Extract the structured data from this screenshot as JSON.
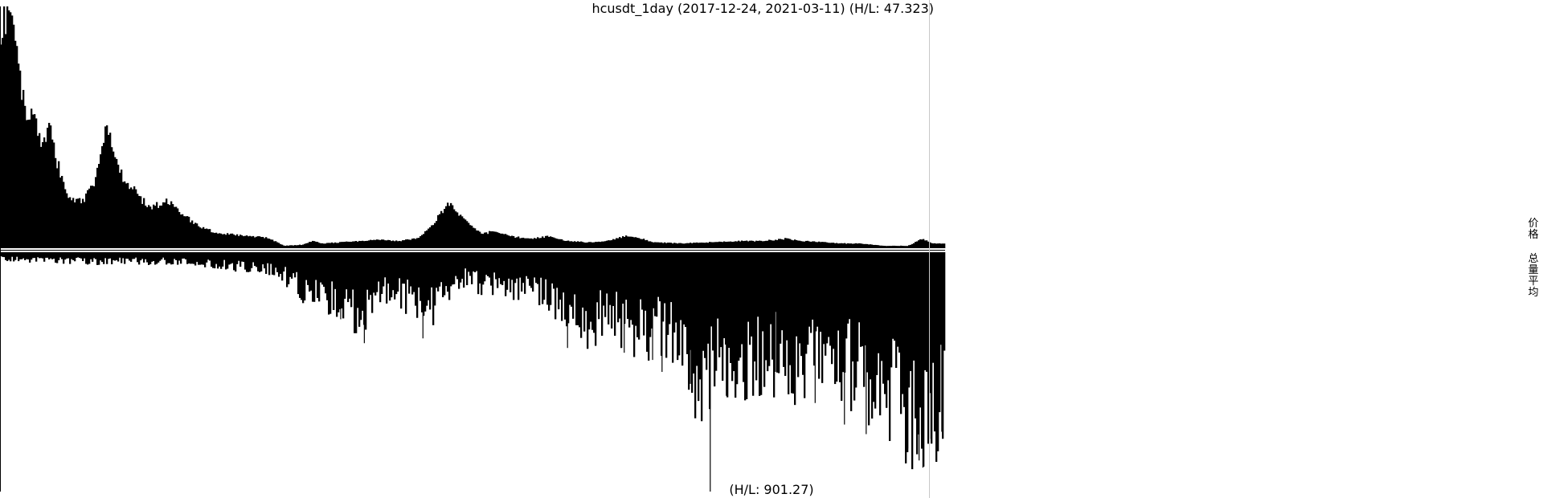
{
  "chart_data": {
    "type": "bar",
    "title": "hcusdt_1day (2017-12-24, 2021-03-11) (H/L: 47.323)",
    "x_range": [
      "2017-12-24",
      "2021-03-11"
    ],
    "panels": [
      {
        "name": "价格",
        "hl_ratio": 47.323,
        "shape": "filled area of daily price, normalized to panel height",
        "knots": [
          [
            0,
            0.86
          ],
          [
            0.003,
            0.97
          ],
          [
            0.008,
            0.99
          ],
          [
            0.012,
            0.93
          ],
          [
            0.018,
            0.78
          ],
          [
            0.024,
            0.62
          ],
          [
            0.03,
            0.55
          ],
          [
            0.035,
            0.63
          ],
          [
            0.04,
            0.48
          ],
          [
            0.046,
            0.44
          ],
          [
            0.052,
            0.5
          ],
          [
            0.057,
            0.4
          ],
          [
            0.063,
            0.32
          ],
          [
            0.07,
            0.22
          ],
          [
            0.078,
            0.2
          ],
          [
            0.088,
            0.2
          ],
          [
            0.098,
            0.27
          ],
          [
            0.105,
            0.38
          ],
          [
            0.112,
            0.52
          ],
          [
            0.118,
            0.42
          ],
          [
            0.125,
            0.33
          ],
          [
            0.133,
            0.27
          ],
          [
            0.142,
            0.24
          ],
          [
            0.15,
            0.2
          ],
          [
            0.16,
            0.17
          ],
          [
            0.17,
            0.19
          ],
          [
            0.18,
            0.2
          ],
          [
            0.19,
            0.15
          ],
          [
            0.2,
            0.12
          ],
          [
            0.21,
            0.09
          ],
          [
            0.225,
            0.07
          ],
          [
            0.24,
            0.06
          ],
          [
            0.26,
            0.05
          ],
          [
            0.28,
            0.045
          ],
          [
            0.29,
            0.03
          ],
          [
            0.3,
            0.01
          ],
          [
            0.32,
            0.015
          ],
          [
            0.33,
            0.03
          ],
          [
            0.34,
            0.02
          ],
          [
            0.36,
            0.025
          ],
          [
            0.38,
            0.03
          ],
          [
            0.4,
            0.035
          ],
          [
            0.42,
            0.03
          ],
          [
            0.44,
            0.04
          ],
          [
            0.455,
            0.09
          ],
          [
            0.468,
            0.16
          ],
          [
            0.475,
            0.19
          ],
          [
            0.485,
            0.14
          ],
          [
            0.5,
            0.09
          ],
          [
            0.51,
            0.06
          ],
          [
            0.52,
            0.07
          ],
          [
            0.54,
            0.05
          ],
          [
            0.56,
            0.04
          ],
          [
            0.58,
            0.05
          ],
          [
            0.6,
            0.03
          ],
          [
            0.62,
            0.025
          ],
          [
            0.64,
            0.03
          ],
          [
            0.66,
            0.05
          ],
          [
            0.67,
            0.05
          ],
          [
            0.69,
            0.025
          ],
          [
            0.72,
            0.02
          ],
          [
            0.75,
            0.025
          ],
          [
            0.78,
            0.03
          ],
          [
            0.8,
            0.03
          ],
          [
            0.82,
            0.035
          ],
          [
            0.83,
            0.04
          ],
          [
            0.85,
            0.03
          ],
          [
            0.87,
            0.025
          ],
          [
            0.89,
            0.02
          ],
          [
            0.91,
            0.02
          ],
          [
            0.935,
            0.01
          ],
          [
            0.96,
            0.01
          ],
          [
            0.975,
            0.04
          ],
          [
            0.985,
            0.02
          ],
          [
            1,
            0.02
          ]
        ]
      },
      {
        "name": "总量平均",
        "hl_ratio": 901.27,
        "shape": "downward daily volume bars, normalized to panel depth",
        "knots": [
          [
            0,
            0.03
          ],
          [
            0.05,
            0.035
          ],
          [
            0.1,
            0.04
          ],
          [
            0.15,
            0.04
          ],
          [
            0.2,
            0.04
          ],
          [
            0.24,
            0.06
          ],
          [
            0.28,
            0.07
          ],
          [
            0.3,
            0.1
          ],
          [
            0.33,
            0.2
          ],
          [
            0.36,
            0.23
          ],
          [
            0.38,
            0.26
          ],
          [
            0.4,
            0.2
          ],
          [
            0.42,
            0.17
          ],
          [
            0.44,
            0.22
          ],
          [
            0.45,
            0.3
          ],
          [
            0.47,
            0.16
          ],
          [
            0.49,
            0.12
          ],
          [
            0.5,
            0.13
          ],
          [
            0.52,
            0.14
          ],
          [
            0.54,
            0.15
          ],
          [
            0.56,
            0.18
          ],
          [
            0.58,
            0.2
          ],
          [
            0.6,
            0.25
          ],
          [
            0.62,
            0.3
          ],
          [
            0.64,
            0.28
          ],
          [
            0.66,
            0.3
          ],
          [
            0.68,
            0.35
          ],
          [
            0.7,
            0.33
          ],
          [
            0.72,
            0.42
          ],
          [
            0.74,
            0.55
          ],
          [
            0.76,
            0.5
          ],
          [
            0.78,
            0.45
          ],
          [
            0.8,
            0.48
          ],
          [
            0.82,
            0.45
          ],
          [
            0.84,
            0.5
          ],
          [
            0.86,
            0.43
          ],
          [
            0.88,
            0.47
          ],
          [
            0.9,
            0.5
          ],
          [
            0.92,
            0.55
          ],
          [
            0.94,
            0.6
          ],
          [
            0.96,
            0.7
          ],
          [
            0.98,
            0.7
          ],
          [
            1,
            0.6
          ]
        ],
        "spikes": [
          [
            0.36,
            0.28
          ],
          [
            0.385,
            0.38
          ],
          [
            0.447,
            0.36
          ],
          [
            0.6,
            0.4
          ],
          [
            0.66,
            0.42
          ],
          [
            0.69,
            0.45
          ],
          [
            0.7,
            0.5
          ],
          [
            0.73,
            0.55
          ],
          [
            0.751,
            1.0
          ],
          [
            0.768,
            0.6
          ],
          [
            0.82,
            0.5
          ],
          [
            0.862,
            0.63
          ],
          [
            0.893,
            0.72
          ],
          [
            0.916,
            0.76
          ],
          [
            0.96,
            0.82
          ],
          [
            0.972,
            0.87
          ],
          [
            0.976,
            0.9
          ],
          [
            0.983,
            0.78
          ],
          [
            0.996,
            0.75
          ]
        ]
      }
    ],
    "bottom_label": "(H/L: 901.27)",
    "grid": false,
    "legend": "right"
  }
}
